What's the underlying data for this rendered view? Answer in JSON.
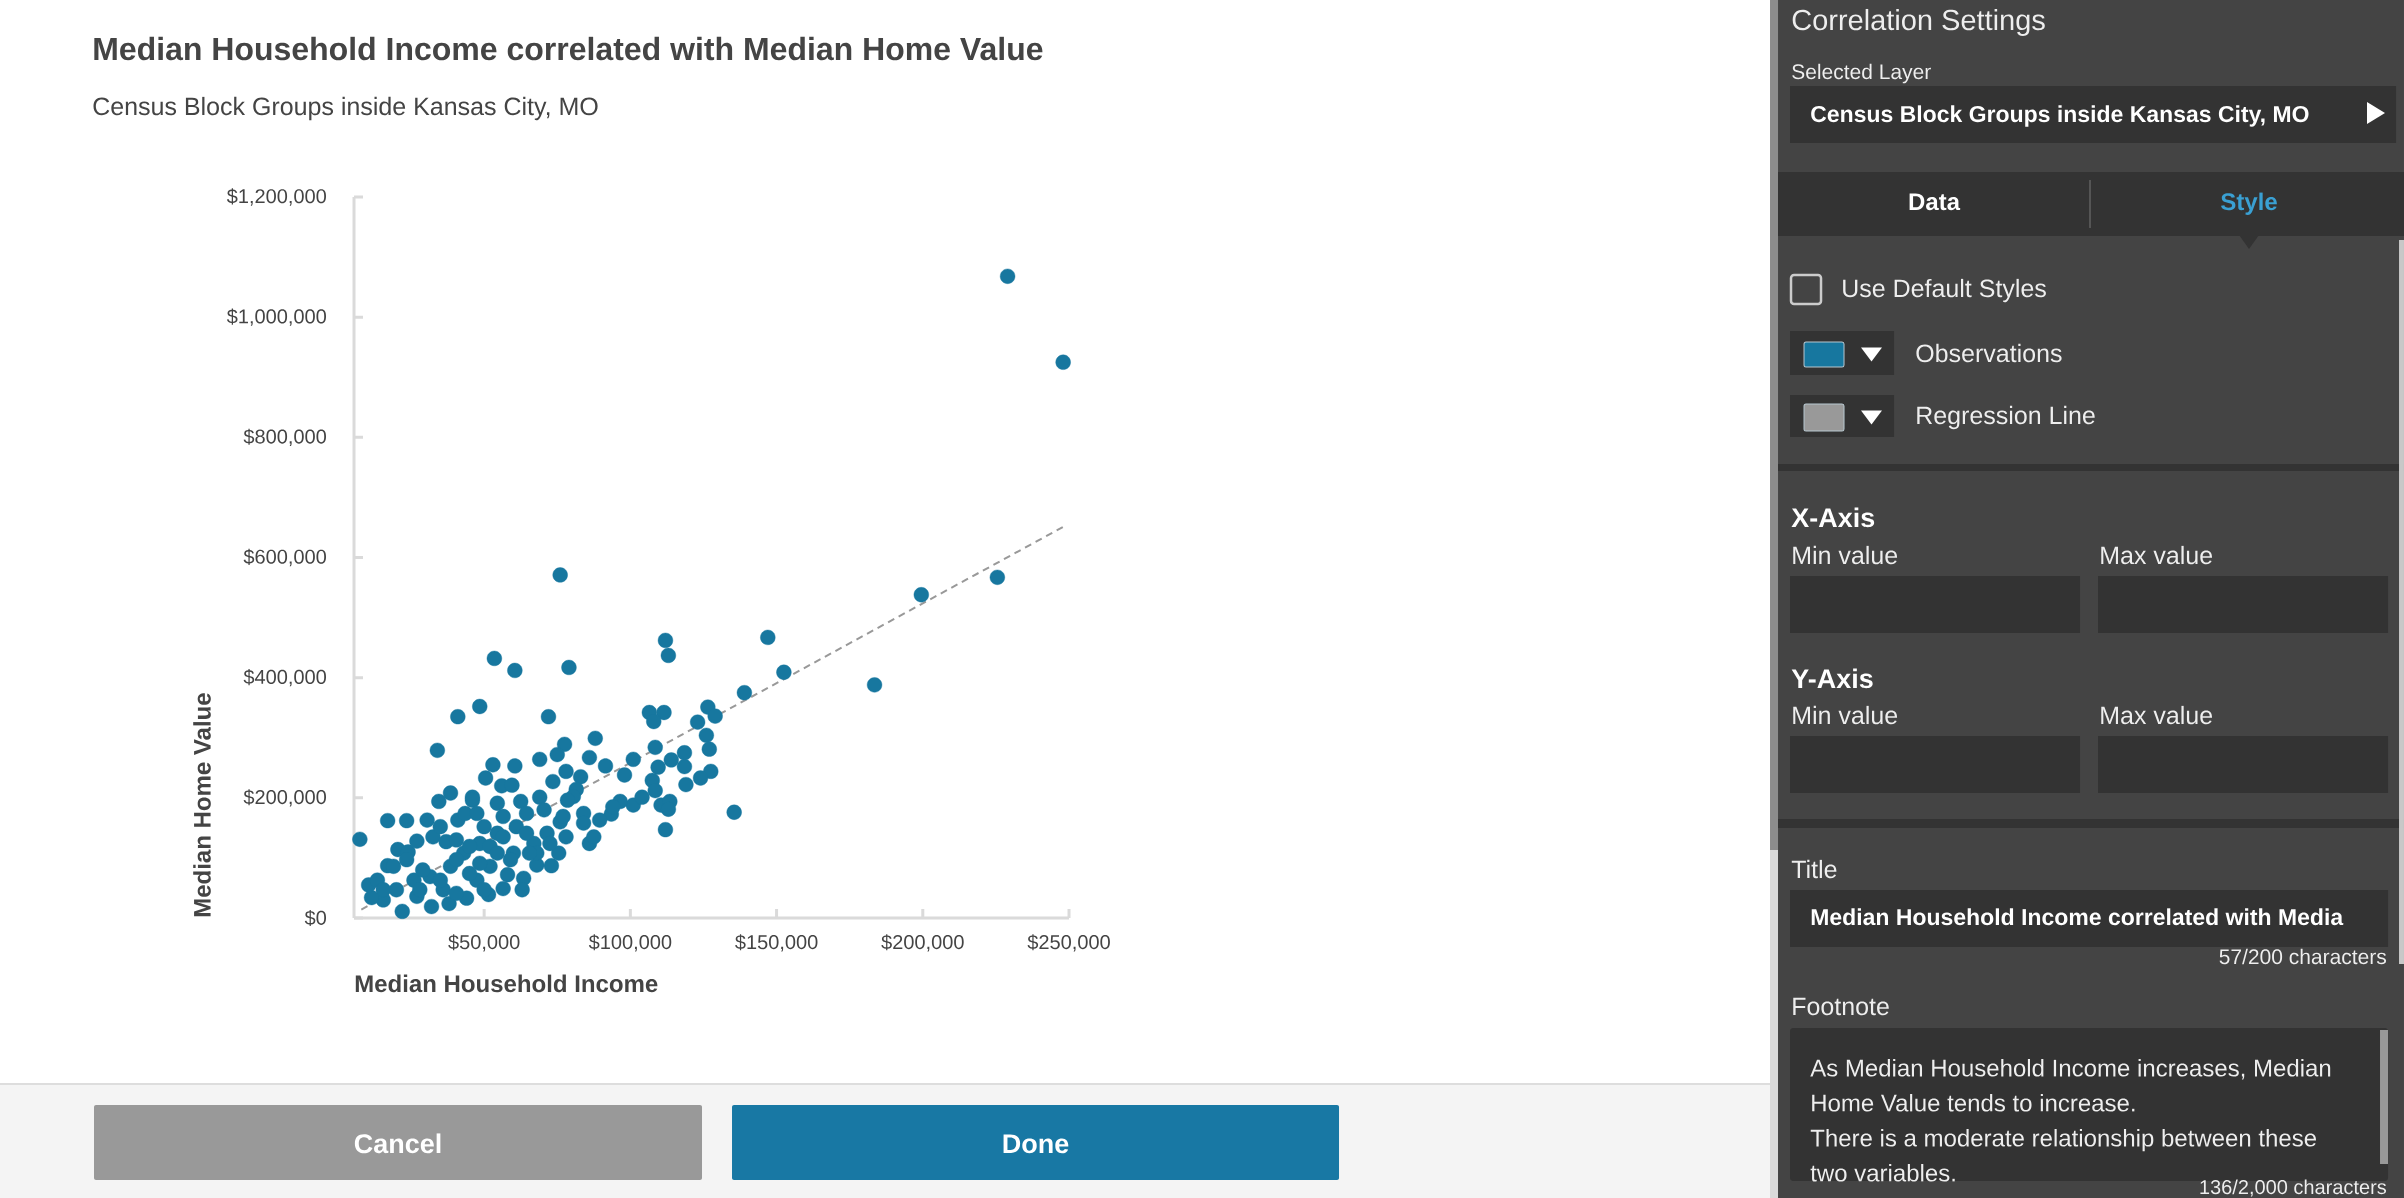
{
  "chart_data": [
    {
      "type": "scatter",
      "title": "Median Household Income correlated with Median Home Value",
      "subtitle": "Census Block Groups inside Kansas City, MO",
      "xlabel": "Median Household Income",
      "ylabel": "Median Home Value",
      "xlim": [
        5500,
        250000
      ],
      "ylim": [
        0,
        1200000
      ],
      "xticks": [
        {
          "value": 50000,
          "label": "$50,000"
        },
        {
          "value": 100000,
          "label": "$100,000"
        },
        {
          "value": 150000,
          "label": "$150,000"
        },
        {
          "value": 200000,
          "label": "$200,000"
        },
        {
          "value": 250000,
          "label": "$250,000"
        }
      ],
      "yticks": [
        {
          "value": 0,
          "label": "$0"
        },
        {
          "value": 200000,
          "label": "$200,000"
        },
        {
          "value": 400000,
          "label": "$400,000"
        },
        {
          "value": 600000,
          "label": "$600,000"
        },
        {
          "value": 800000,
          "label": "$800,000"
        },
        {
          "value": 1000000,
          "label": "$1,000,000"
        },
        {
          "value": 1200000,
          "label": "$1,200,000"
        }
      ],
      "marker": "circle",
      "series": [
        {
          "color": "#17779f",
          "x": [
            76000,
            112000,
            113000,
            147000,
            53500,
            60500,
            79000,
            139000,
            48500,
            41000,
            72000,
            106500,
            111500,
            108000,
            126500,
            129000,
            123000,
            126000,
            127000,
            34000,
            88000,
            77500,
            75000,
            86000,
            108500,
            118500,
            114000,
            101000,
            53000,
            60500,
            69000,
            91500,
            109500,
            118500,
            127500,
            124000,
            119000,
            107500,
            108500,
            98000,
            83000,
            78000,
            73500,
            50500,
            56000,
            59500,
            38500,
            34500,
            46000,
            69000,
            81500,
            101000,
            110500,
            113500,
            113000,
            96500,
            135500,
            112000,
            86000,
            87500,
            78000,
            93500,
            84000,
            76000,
            73000,
            75500,
            68000,
            63500,
            63000,
            56500,
            51500,
            58000,
            44000,
            38000,
            32000,
            22000,
            15500,
            11500,
            10500,
            7500,
            13500,
            17000,
            17000,
            23500,
            30500,
            20500,
            24000,
            27000,
            32500,
            37000,
            35000,
            41000,
            46000,
            43500,
            47500,
            54500,
            62500,
            64500,
            61000,
            54500,
            48500,
            43000,
            38500,
            31500,
            26000,
            20000,
            27000,
            47500,
            52000,
            60000,
            67000,
            71500,
            50000,
            36000,
            40500,
            80500,
            84000,
            89500,
            94000,
            104000,
            70500,
            77000,
            78500,
            56500,
            50000,
            68000,
            59000,
            45000,
            72500,
            229000,
            248000,
            225500,
            199500,
            183500,
            152500,
            19000,
            23500,
            29000,
            35000,
            40500,
            45000,
            52000,
            56500,
            64500,
            65500,
            54500,
            40500,
            28000,
            15500,
            48500
          ],
          "values": [
            571000,
            462000,
            437000,
            467000,
            432000,
            412000,
            417000,
            375000,
            352000,
            335000,
            335000,
            342000,
            342000,
            327000,
            351000,
            336000,
            326000,
            304000,
            281000,
            279000,
            299000,
            289000,
            272000,
            267000,
            284000,
            275000,
            263000,
            264000,
            255000,
            253000,
            264000,
            253000,
            251000,
            252000,
            244000,
            233000,
            222000,
            229000,
            212000,
            238000,
            235000,
            244000,
            227000,
            233000,
            220000,
            221000,
            208000,
            194000,
            201000,
            201000,
            214000,
            188000,
            188000,
            194000,
            181000,
            194000,
            176000,
            147000,
            124000,
            135000,
            135000,
            173000,
            174000,
            160000,
            87000,
            108000,
            88000,
            66000,
            47000,
            49000,
            39000,
            72000,
            33000,
            24000,
            19000,
            11000,
            30000,
            34000,
            55000,
            131000,
            63000,
            87000,
            162000,
            162000,
            163000,
            114000,
            110000,
            128000,
            135000,
            127000,
            152000,
            163000,
            196000,
            174000,
            174000,
            191000,
            194000,
            174000,
            152000,
            141000,
            124000,
            108000,
            86000,
            69000,
            63000,
            47000,
            36000,
            63000,
            86000,
            108000,
            124000,
            141000,
            47000,
            47000,
            41000,
            202000,
            158000,
            163000,
            185000,
            201000,
            180000,
            169000,
            196000,
            169000,
            152000,
            108000,
            97000,
            74000,
            124000,
            1068000,
            925000,
            567000,
            538000,
            388000,
            409000,
            86000,
            97000,
            80000,
            63000,
            97000,
            119000,
            119000,
            135000,
            141000,
            108000,
            108000,
            130000,
            47000,
            47000,
            91000
          ]
        },
        {
          "type": "line",
          "color": "#999999",
          "line_style": "dashed",
          "marker": "none",
          "x": [
            8000,
            248000
          ],
          "values": [
            14000,
            651000
          ]
        }
      ]
    },
    {
      "type": "other",
      "title": "Correlation Settings",
      "annotations": [
        "Selected Layer",
        "Census Block Groups inside Kansas City, MO",
        "Data",
        "Style",
        "Use Default Styles",
        "Observations",
        "Regression Line",
        "X-Axis",
        "Min value",
        "Max value",
        "Y-Axis",
        "Min value",
        "Max value",
        "Title",
        "Median Household Income correlated with Media",
        "57/200 characters",
        "Footnote",
        "As Median Household Income increases, Median Home Value tends to increase.",
        "There is a moderate relationship between these two variables.",
        "136/2,000 characters",
        "Cancel",
        "Done"
      ]
    }
  ]
}
